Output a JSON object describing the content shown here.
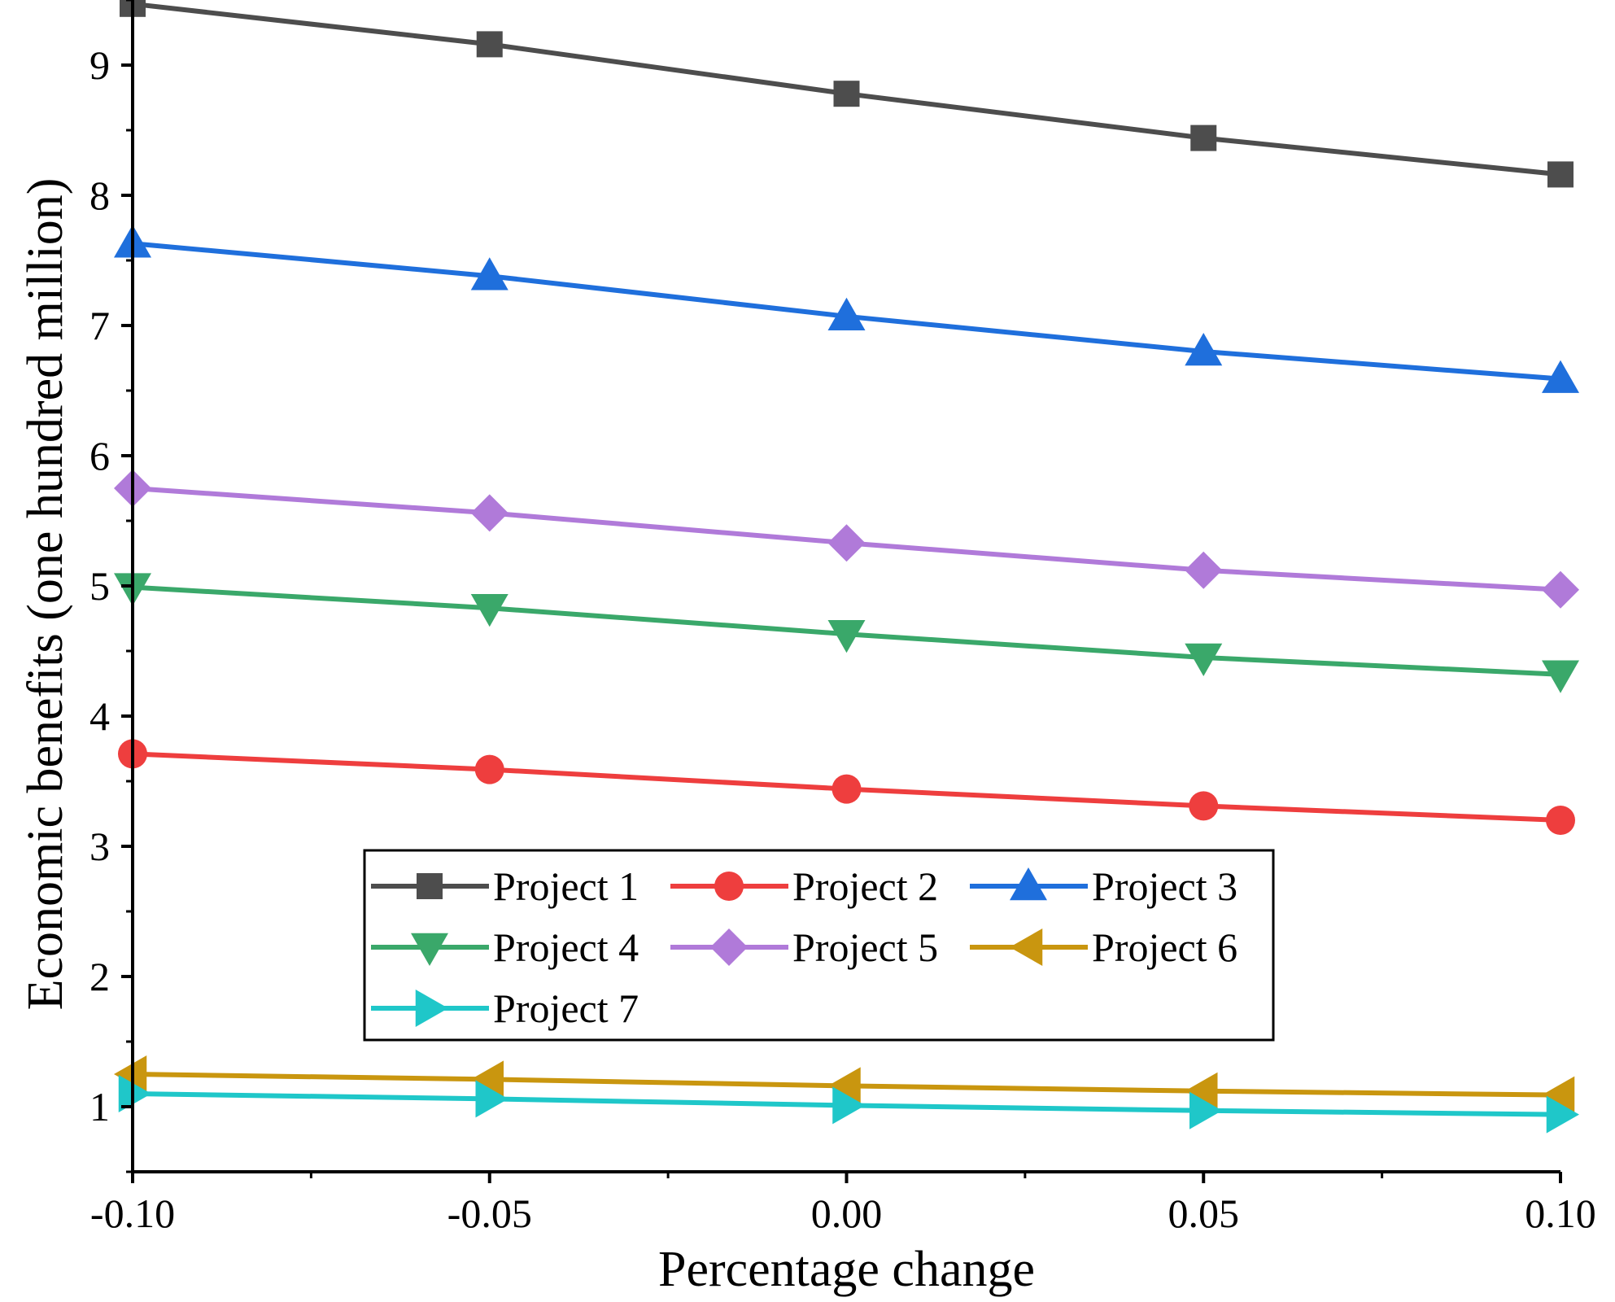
{
  "chart_data": {
    "type": "line",
    "xlabel": "Percentage change",
    "ylabel": "Economic benefits (one hundred million)",
    "x": [
      -0.1,
      -0.05,
      0.0,
      0.05,
      0.1
    ],
    "x_tick_labels": [
      "-0.10",
      "-0.05",
      "0.00",
      "0.05",
      "0.10"
    ],
    "y_ticks": [
      1,
      2,
      3,
      4,
      5,
      6,
      7,
      8,
      9
    ],
    "xlim": [
      -0.1,
      0.1
    ],
    "ylim": [
      0.5,
      9.5
    ],
    "grid": false,
    "legend_position": "lower-center",
    "series": [
      {
        "name": "Project 1",
        "color": "#4d4d4d",
        "marker": "square",
        "values": [
          9.47,
          9.16,
          8.78,
          8.44,
          8.16
        ]
      },
      {
        "name": "Project 2",
        "color": "#ee3e3e",
        "marker": "circle",
        "values": [
          3.71,
          3.59,
          3.44,
          3.31,
          3.2
        ]
      },
      {
        "name": "Project 3",
        "color": "#1f6fdc",
        "marker": "triangle-up",
        "values": [
          7.63,
          7.38,
          7.07,
          6.8,
          6.59
        ]
      },
      {
        "name": "Project 4",
        "color": "#3aa86a",
        "marker": "triangle-down",
        "values": [
          4.99,
          4.83,
          4.63,
          4.45,
          4.32
        ]
      },
      {
        "name": "Project 5",
        "color": "#b07ad9",
        "marker": "diamond",
        "values": [
          5.75,
          5.56,
          5.33,
          5.12,
          4.97
        ]
      },
      {
        "name": "Project 6",
        "color": "#c9960f",
        "marker": "triangle-left",
        "values": [
          1.25,
          1.21,
          1.16,
          1.12,
          1.09
        ]
      },
      {
        "name": "Project 7",
        "color": "#1fc7c9",
        "marker": "triangle-right",
        "values": [
          1.1,
          1.06,
          1.01,
          0.97,
          0.94
        ]
      }
    ]
  }
}
